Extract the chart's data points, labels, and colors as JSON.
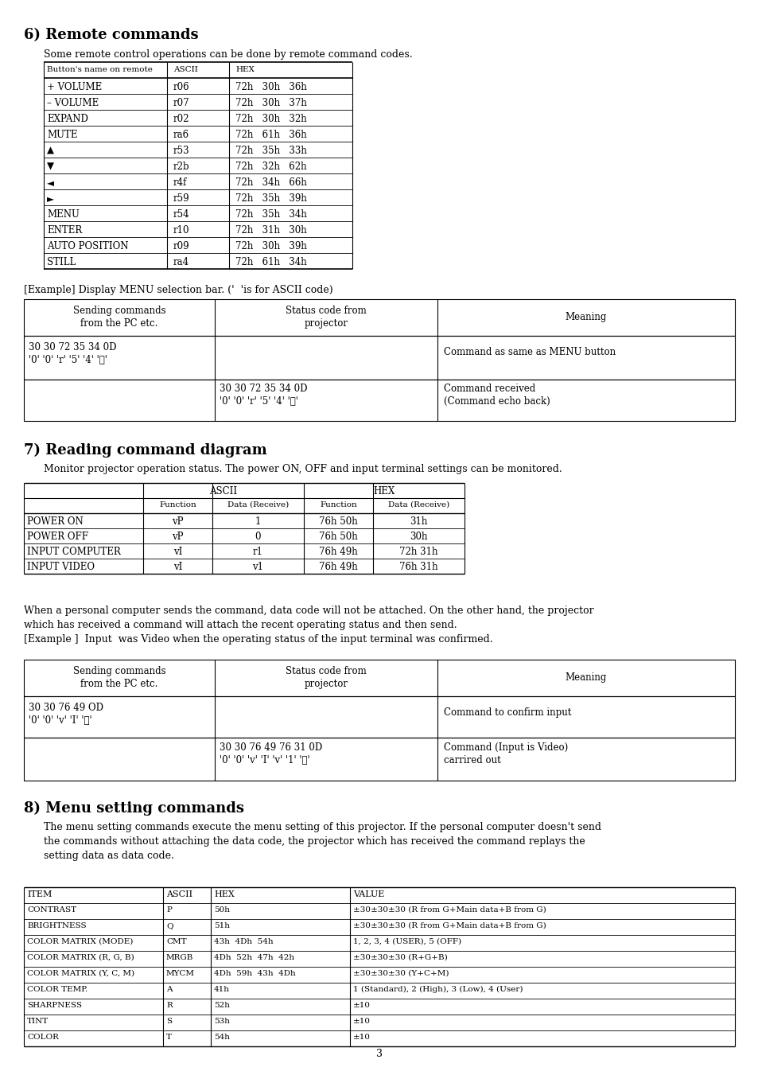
{
  "page_bg": "#ffffff",
  "title6": "6) Remote commands",
  "text6": "Some remote control operations can be done by remote command codes.",
  "table1_rows": [
    [
      "Button's name on remote",
      "ASCII",
      "HEX",
      true
    ],
    [
      "+ VOLUME",
      "r06",
      "72h   30h   36h",
      false
    ],
    [
      "– VOLUME",
      "r07",
      "72h   30h   37h",
      false
    ],
    [
      "EXPAND",
      "r02",
      "72h   30h   32h",
      false
    ],
    [
      "MUTE",
      "ra6",
      "72h   61h   36h",
      false
    ],
    [
      "▲",
      "r53",
      "72h   35h   33h",
      false
    ],
    [
      "▼",
      "r2b",
      "72h   32h   62h",
      false
    ],
    [
      "◄",
      "r4f",
      "72h   34h   66h",
      false
    ],
    [
      "►",
      "r59",
      "72h   35h   39h",
      false
    ],
    [
      "MENU",
      "r54",
      "72h   35h   34h",
      false
    ],
    [
      "ENTER",
      "r10",
      "72h   31h   30h",
      false
    ],
    [
      "AUTO POSITION",
      "r09",
      "72h   30h   39h",
      false
    ],
    [
      "STILL",
      "ra4",
      "72h   61h   34h",
      false
    ]
  ],
  "example_text": "[Example] Display MENU selection bar. ('  'is for ASCII code)",
  "title7": "7) Reading command diagram",
  "text7": "Monitor projector operation status. The power ON, OFF and input terminal settings can be monitored.",
  "table3_rows": [
    [
      "POWER ON",
      "vP",
      "1",
      "76h 50h",
      "31h"
    ],
    [
      "POWER OFF",
      "vP",
      "0",
      "76h 50h",
      "30h"
    ],
    [
      "INPUT COMPUTER",
      "vI",
      "r1",
      "76h 49h",
      "72h 31h"
    ],
    [
      "INPUT VIDEO",
      "vI",
      "v1",
      "76h 49h",
      "76h 31h"
    ]
  ],
  "text7b_lines": [
    "When a personal computer sends the command, data code will not be attached. On the other hand, the projector",
    "which has received a command will attach the recent operating status and then send.",
    "[Example ]  Input  was Video when the operating status of the input terminal was confirmed."
  ],
  "title8": "8) Menu setting commands",
  "text8_lines": [
    "The menu setting commands execute the menu setting of this projector. If the personal computer doesn't send",
    "the commands without attaching the data code, the projector which has received the command replays the",
    "setting data as data code."
  ],
  "table5_rows": [
    [
      "CONTRAST",
      "P",
      "50h",
      "±30±30±30 (R from G+Main data+B from G)"
    ],
    [
      "BRIGHTNESS",
      "Q",
      "51h",
      "±30±30±30 (R from G+Main data+B from G)"
    ],
    [
      "COLOR MATRIX (MODE)",
      "CMT",
      "43h  4Dh  54h",
      "1, 2, 3, 4 (USER), 5 (OFF)"
    ],
    [
      "COLOR MATRIX (R, G, B)",
      "MRGB",
      "4Dh  52h  47h  42h",
      "±30±30±30 (R+G+B)"
    ],
    [
      "COLOR MATRIX (Y, C, M)",
      "MYCM",
      "4Dh  59h  43h  4Dh",
      "±30±30±30 (Y+C+M)"
    ],
    [
      "COLOR TEMP.",
      "A",
      "41h",
      "1 (Standard), 2 (High), 3 (Low), 4 (User)"
    ],
    [
      "SHARPNESS",
      "R",
      "52h",
      "±10"
    ],
    [
      "TINT",
      "S",
      "53h",
      "±10"
    ],
    [
      "COLOR",
      "T",
      "54h",
      "±10"
    ]
  ],
  "page_number": "3"
}
